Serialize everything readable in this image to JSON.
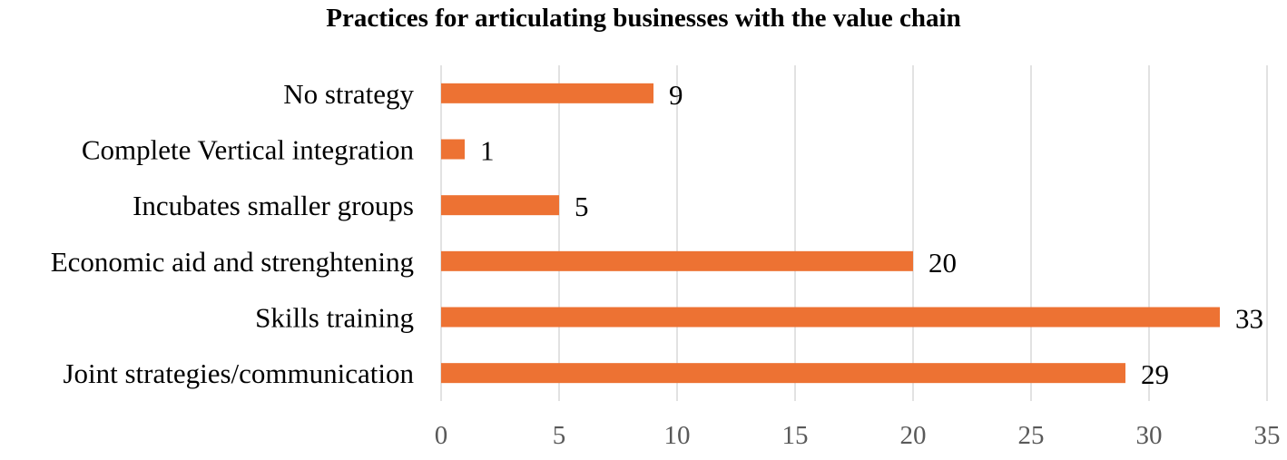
{
  "chart_data": {
    "type": "bar",
    "orientation": "horizontal",
    "title": "Practices for articulating businesses with the value chain",
    "xlabel": "",
    "ylabel": "",
    "categories": [
      "No strategy",
      "Complete Vertical integration",
      "Incubates smaller groups",
      "Economic aid and strenghtening",
      "Skills training",
      "Joint strategies/communication"
    ],
    "values": [
      9,
      1,
      5,
      20,
      33,
      29
    ],
    "xlim": [
      0,
      35
    ],
    "x_ticks": [
      "0",
      "5",
      "10",
      "15",
      "20",
      "25",
      "30",
      "35"
    ],
    "grid": "vertical",
    "legend": "none",
    "bar_color": "#ED7233",
    "grid_color": "#D9D9D9"
  }
}
